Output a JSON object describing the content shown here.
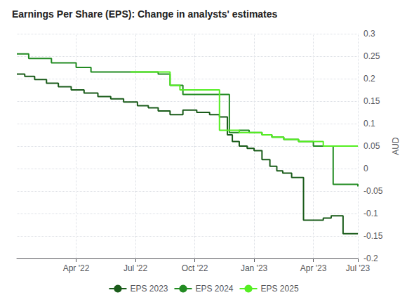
{
  "chart_data": {
    "type": "line",
    "line_style": "step",
    "title": "Earnings Per Share (EPS): Change in analysts' estimates",
    "ylabel": "AUD",
    "xlim": [
      0,
      345
    ],
    "xticks": [
      {
        "value": 60,
        "label": "Apr '22"
      },
      {
        "value": 120,
        "label": "Jul '22"
      },
      {
        "value": 180,
        "label": "Oct '22"
      },
      {
        "value": 240,
        "label": "Jan '23"
      },
      {
        "value": 300,
        "label": "Apr '23"
      },
      {
        "value": 345,
        "label": "Jul '23"
      }
    ],
    "ylim": [
      -0.2,
      0.3
    ],
    "yticks": [
      -0.2,
      -0.15,
      -0.1,
      -0.05,
      0,
      0.05,
      0.1,
      0.15,
      0.2,
      0.25,
      0.3
    ],
    "grid": true,
    "legend": "bottom",
    "series": [
      {
        "name": "EPS 2023",
        "color": "#1a5c1a",
        "x": [
          0,
          8,
          18,
          30,
          42,
          55,
          68,
          82,
          95,
          108,
          122,
          133,
          143,
          155,
          168,
          182,
          195,
          205,
          213,
          218,
          225,
          233,
          240,
          248,
          256,
          263,
          269,
          278,
          290,
          300,
          310,
          318,
          330,
          345
        ],
        "values": [
          0.21,
          0.205,
          0.198,
          0.19,
          0.182,
          0.175,
          0.168,
          0.16,
          0.155,
          0.148,
          0.14,
          0.135,
          0.128,
          0.12,
          0.13,
          0.125,
          0.12,
          0.115,
          0.075,
          0.06,
          0.05,
          0.045,
          0.04,
          0.02,
          0.005,
          -0.005,
          -0.01,
          -0.02,
          -0.115,
          -0.115,
          -0.11,
          -0.105,
          -0.145,
          -0.145
        ]
      },
      {
        "name": "EPS 2024",
        "color": "#228B22",
        "x": [
          0,
          12,
          35,
          60,
          75,
          95,
          115,
          130,
          143,
          155,
          168,
          180,
          193,
          205,
          215,
          225,
          235,
          248,
          258,
          270,
          285,
          300,
          320,
          345
        ],
        "values": [
          0.255,
          0.245,
          0.235,
          0.225,
          0.215,
          0.215,
          0.215,
          0.215,
          0.21,
          0.185,
          0.165,
          0.165,
          0.165,
          0.165,
          0.08,
          0.085,
          0.08,
          0.075,
          0.07,
          0.065,
          0.06,
          0.05,
          -0.035,
          -0.04
        ]
      },
      {
        "name": "EPS 2025",
        "color": "#55ee22",
        "x": [
          115,
          130,
          145,
          155,
          165,
          178,
          192,
          205,
          215,
          225,
          235,
          248,
          258,
          270,
          285,
          310,
          330,
          345
        ],
        "values": [
          0.215,
          0.215,
          0.215,
          0.185,
          0.175,
          0.175,
          0.175,
          0.085,
          0.085,
          0.08,
          0.08,
          0.075,
          0.07,
          0.065,
          0.06,
          0.05,
          0.05,
          0.05
        ]
      }
    ]
  }
}
